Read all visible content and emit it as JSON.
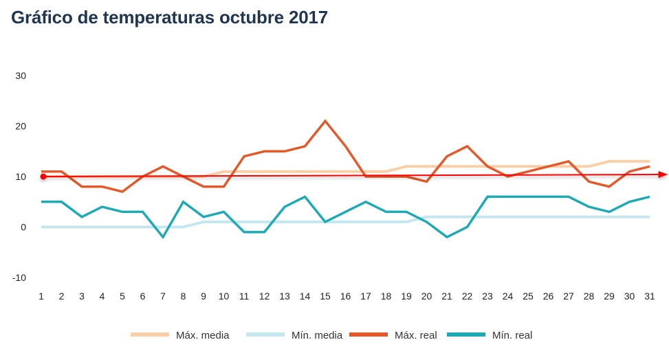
{
  "title": "Gráfico de temperaturas octubre 2017",
  "chart_data": {
    "type": "line",
    "title": "Gráfico de temperaturas octubre 2017",
    "xlabel": "",
    "ylabel": "",
    "x": [
      1,
      2,
      3,
      4,
      5,
      6,
      7,
      8,
      9,
      10,
      11,
      12,
      13,
      14,
      15,
      16,
      17,
      18,
      19,
      20,
      21,
      22,
      23,
      24,
      25,
      26,
      27,
      28,
      29,
      30,
      31
    ],
    "ylim": [
      -10,
      30
    ],
    "yticks": [
      30,
      20,
      10,
      0,
      -10
    ],
    "grid": false,
    "legend_position": "bottom",
    "series": [
      {
        "name": "Máx. media",
        "color": "#f9cfa8",
        "values": [
          10,
          10,
          10,
          10,
          10,
          10,
          10,
          10,
          10,
          11,
          11,
          11,
          11,
          11,
          11,
          11,
          11,
          11,
          12,
          12,
          12,
          12,
          12,
          12,
          12,
          12,
          12,
          12,
          13,
          13,
          13
        ]
      },
      {
        "name": "Mín. media",
        "color": "#c4e6ee",
        "values": [
          0,
          0,
          0,
          0,
          0,
          0,
          0,
          0,
          1,
          1,
          1,
          1,
          1,
          1,
          1,
          1,
          1,
          1,
          1,
          2,
          2,
          2,
          2,
          2,
          2,
          2,
          2,
          2,
          2,
          2,
          2
        ]
      },
      {
        "name": "Máx. real",
        "color": "#e05a2b",
        "values": [
          11,
          11,
          8,
          8,
          7,
          10,
          12,
          10,
          8,
          8,
          14,
          15,
          15,
          16,
          21,
          16,
          10,
          10,
          10,
          9,
          14,
          16,
          12,
          10,
          11,
          12,
          13,
          9,
          8,
          11,
          12
        ]
      },
      {
        "name": "Mín. real",
        "color": "#1fa9b5",
        "values": [
          5,
          5,
          2,
          4,
          3,
          3,
          -2,
          5,
          2,
          3,
          -1,
          -1,
          4,
          6,
          1,
          3,
          5,
          3,
          3,
          1,
          -2,
          0,
          6,
          6,
          6,
          6,
          6,
          4,
          3,
          5,
          6
        ]
      }
    ],
    "annotations": [
      {
        "type": "arrow",
        "color": "#ff0000",
        "from": {
          "x": 1,
          "y": 10
        },
        "to": {
          "x": 31.9,
          "y": 10.4
        },
        "start_marker": "dot",
        "end_marker": "arrowhead"
      }
    ]
  }
}
